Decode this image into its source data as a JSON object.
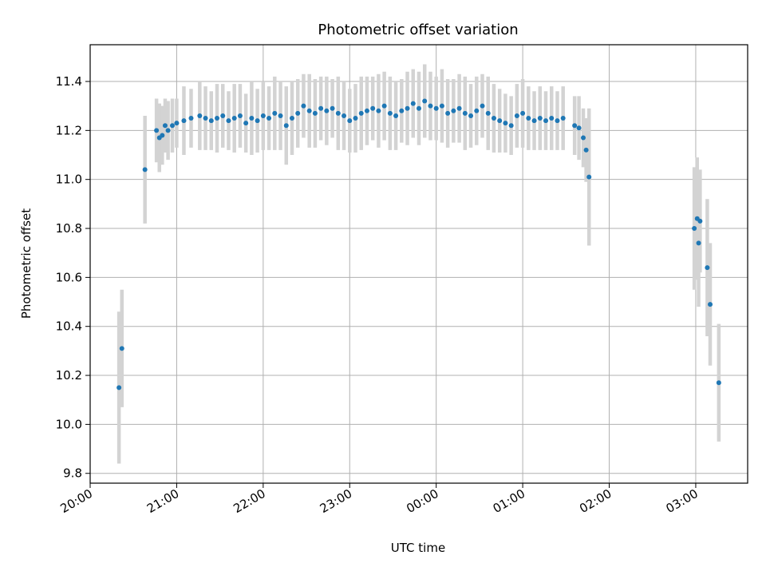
{
  "chart_data": {
    "type": "scatter",
    "title": "Photometric offset variation",
    "xlabel": "UTC time",
    "ylabel": "Photometric offset",
    "x_axis": {
      "kind": "time",
      "start": "20:00",
      "end": "03:36",
      "ticks": [
        "20:00",
        "21:00",
        "22:00",
        "23:00",
        "00:00",
        "01:00",
        "02:00",
        "03:00"
      ]
    },
    "ylim": [
      9.76,
      11.55
    ],
    "yticks": [
      "9.8",
      "10.0",
      "10.2",
      "10.4",
      "10.6",
      "10.8",
      "11.0",
      "11.2",
      "11.4"
    ],
    "grid": true,
    "colors": {
      "points": "#1f77b4",
      "error_bars": "#d3d3d3",
      "grid": "#b0b0b0"
    },
    "series": [
      {
        "columns": [
          "time_utc",
          "offset",
          "error"
        ],
        "points": [
          [
            "20:20",
            10.15,
            0.31
          ],
          [
            "20:22",
            10.31,
            0.24
          ],
          [
            "20:38",
            11.04,
            0.22
          ],
          [
            "20:46",
            11.2,
            0.13
          ],
          [
            "20:48",
            11.17,
            0.14
          ],
          [
            "20:50",
            11.18,
            0.12
          ],
          [
            "20:52",
            11.22,
            0.11
          ],
          [
            "20:54",
            11.2,
            0.12
          ],
          [
            "20:57",
            11.22,
            0.11
          ],
          [
            "21:00",
            11.23,
            0.1
          ],
          [
            "21:05",
            11.24,
            0.14
          ],
          [
            "21:10",
            11.25,
            0.12
          ],
          [
            "21:16",
            11.26,
            0.14
          ],
          [
            "21:20",
            11.25,
            0.13
          ],
          [
            "21:24",
            11.24,
            0.12
          ],
          [
            "21:28",
            11.25,
            0.14
          ],
          [
            "21:32",
            11.26,
            0.13
          ],
          [
            "21:36",
            11.24,
            0.12
          ],
          [
            "21:40",
            11.25,
            0.14
          ],
          [
            "21:44",
            11.26,
            0.13
          ],
          [
            "21:48",
            11.23,
            0.12
          ],
          [
            "21:52",
            11.25,
            0.15
          ],
          [
            "21:56",
            11.24,
            0.13
          ],
          [
            "22:00",
            11.26,
            0.14
          ],
          [
            "22:04",
            11.25,
            0.13
          ],
          [
            "22:08",
            11.27,
            0.15
          ],
          [
            "22:12",
            11.26,
            0.14
          ],
          [
            "22:16",
            11.22,
            0.16
          ],
          [
            "22:20",
            11.25,
            0.15
          ],
          [
            "22:24",
            11.27,
            0.14
          ],
          [
            "22:28",
            11.3,
            0.13
          ],
          [
            "22:32",
            11.28,
            0.15
          ],
          [
            "22:36",
            11.27,
            0.14
          ],
          [
            "22:40",
            11.29,
            0.13
          ],
          [
            "22:44",
            11.28,
            0.14
          ],
          [
            "22:48",
            11.29,
            0.12
          ],
          [
            "22:52",
            11.27,
            0.15
          ],
          [
            "22:56",
            11.26,
            0.14
          ],
          [
            "23:00",
            11.24,
            0.13
          ],
          [
            "23:04",
            11.25,
            0.14
          ],
          [
            "23:08",
            11.27,
            0.15
          ],
          [
            "23:12",
            11.28,
            0.14
          ],
          [
            "23:16",
            11.29,
            0.13
          ],
          [
            "23:20",
            11.28,
            0.15
          ],
          [
            "23:24",
            11.3,
            0.14
          ],
          [
            "23:28",
            11.27,
            0.15
          ],
          [
            "23:32",
            11.26,
            0.14
          ],
          [
            "23:36",
            11.28,
            0.13
          ],
          [
            "23:40",
            11.29,
            0.15
          ],
          [
            "23:44",
            11.31,
            0.14
          ],
          [
            "23:48",
            11.29,
            0.15
          ],
          [
            "23:52",
            11.32,
            0.15
          ],
          [
            "23:56",
            11.3,
            0.14
          ],
          [
            "00:00",
            11.29,
            0.13
          ],
          [
            "00:04",
            11.3,
            0.15
          ],
          [
            "00:08",
            11.27,
            0.14
          ],
          [
            "00:12",
            11.28,
            0.13
          ],
          [
            "00:16",
            11.29,
            0.14
          ],
          [
            "00:20",
            11.27,
            0.15
          ],
          [
            "00:24",
            11.26,
            0.13
          ],
          [
            "00:28",
            11.28,
            0.14
          ],
          [
            "00:32",
            11.3,
            0.13
          ],
          [
            "00:36",
            11.27,
            0.15
          ],
          [
            "00:40",
            11.25,
            0.14
          ],
          [
            "00:44",
            11.24,
            0.13
          ],
          [
            "00:48",
            11.23,
            0.12
          ],
          [
            "00:52",
            11.22,
            0.12
          ],
          [
            "00:56",
            11.26,
            0.13
          ],
          [
            "01:00",
            11.27,
            0.14
          ],
          [
            "01:04",
            11.25,
            0.13
          ],
          [
            "01:08",
            11.24,
            0.12
          ],
          [
            "01:12",
            11.25,
            0.13
          ],
          [
            "01:16",
            11.24,
            0.12
          ],
          [
            "01:20",
            11.25,
            0.13
          ],
          [
            "01:24",
            11.24,
            0.12
          ],
          [
            "01:28",
            11.25,
            0.13
          ],
          [
            "01:36",
            11.22,
            0.12
          ],
          [
            "01:39",
            11.21,
            0.13
          ],
          [
            "01:42",
            11.17,
            0.12
          ],
          [
            "01:44",
            11.12,
            0.13
          ],
          [
            "01:46",
            11.01,
            0.28
          ],
          [
            "02:59",
            10.8,
            0.25
          ],
          [
            "03:01",
            10.84,
            0.25
          ],
          [
            "03:03",
            10.83,
            0.21
          ],
          [
            "03:02",
            10.74,
            0.26
          ],
          [
            "03:08",
            10.64,
            0.28
          ],
          [
            "03:10",
            10.49,
            0.25
          ],
          [
            "03:16",
            10.17,
            0.24
          ]
        ]
      }
    ]
  }
}
